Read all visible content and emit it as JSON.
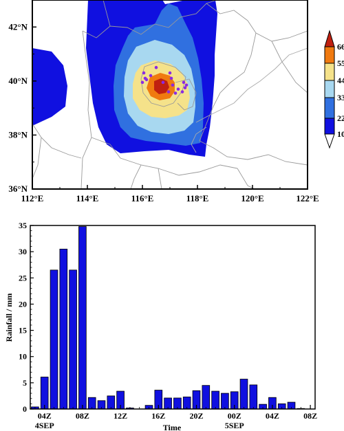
{
  "chart_data": [
    {
      "type": "heatmap",
      "description_units": "filled contour map",
      "x_ticks": [
        "112°E",
        "114°E",
        "116°E",
        "118°E",
        "120°E",
        "122°E"
      ],
      "y_ticks": [
        "36°N",
        "38°N",
        "40°N",
        "42°N"
      ],
      "xlim": [
        112,
        122
      ],
      "ylim": [
        36,
        43
      ],
      "colorbar": {
        "levels": [
          10,
          22,
          33,
          44,
          55,
          66
        ],
        "labels": [
          "10",
          "22",
          "33",
          "44",
          "55",
          "66"
        ],
        "colors": [
          "#1010e0",
          "#3070e0",
          "#a8d8f0",
          "#f5e28a",
          "#f07a10",
          "#c02010",
          "#ffffff"
        ]
      },
      "stations": [
        [
          116.05,
          40.3
        ],
        [
          116.1,
          40.1
        ],
        [
          116.0,
          39.95
        ],
        [
          116.15,
          40.05
        ],
        [
          116.5,
          40.5
        ],
        [
          116.3,
          40.2
        ],
        [
          116.75,
          39.95
        ],
        [
          117.05,
          40.1
        ],
        [
          117.1,
          39.85
        ],
        [
          117.3,
          39.7
        ],
        [
          117.45,
          39.6
        ],
        [
          117.5,
          39.95
        ],
        [
          117.55,
          39.75
        ],
        [
          117.2,
          39.55
        ],
        [
          116.95,
          39.6
        ],
        [
          117.0,
          40.3
        ],
        [
          117.6,
          39.85
        ]
      ]
    },
    {
      "type": "bar",
      "categories": [
        "03Z",
        "04Z",
        "05Z",
        "06Z",
        "07Z",
        "08Z",
        "09Z",
        "10Z",
        "11Z",
        "12Z",
        "13Z",
        "14Z",
        "15Z",
        "16Z",
        "17Z",
        "18Z",
        "19Z",
        "20Z",
        "21Z",
        "22Z",
        "23Z",
        "00Z",
        "01Z",
        "02Z",
        "03Z",
        "04Z",
        "05Z",
        "06Z",
        "07Z",
        "08Z"
      ],
      "values": [
        0.4,
        6.1,
        26.5,
        30.5,
        26.5,
        34.8,
        2.2,
        1.6,
        2.5,
        3.4,
        0.2,
        0,
        0.7,
        3.6,
        2.1,
        2.1,
        2.3,
        3.5,
        4.5,
        3.4,
        3.0,
        3.3,
        5.7,
        4.6,
        0.9,
        2.2,
        1.0,
        1.3,
        0.1,
        0
      ],
      "tick_labels": [
        "04Z",
        "08Z",
        "12Z",
        "16Z",
        "20Z",
        "00Z",
        "04Z",
        "08Z"
      ],
      "date_labels": [
        "4SEP",
        "5SEP"
      ],
      "xlabel": "Time",
      "ylabel": "Rainfall / mm",
      "ylim": [
        0,
        35
      ],
      "yticks": [
        0,
        5,
        10,
        15,
        20,
        25,
        30,
        35
      ],
      "bar_color": "#1010e0"
    }
  ]
}
